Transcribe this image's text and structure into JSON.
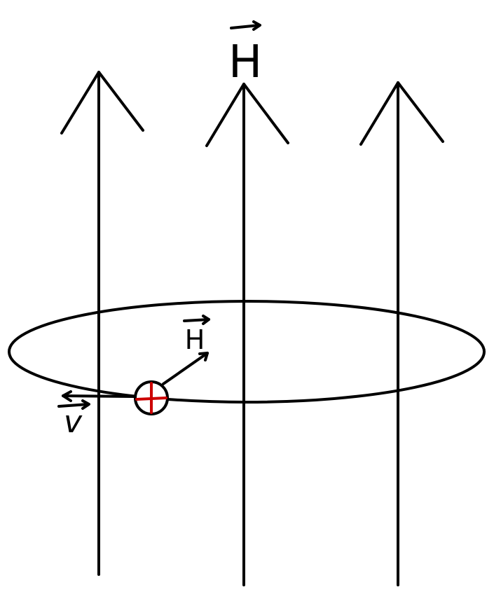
{
  "diagram": {
    "field_label": "H",
    "local_field_label": "H",
    "velocity_label": "v",
    "ink_color": "#000000",
    "charge_cross_color": "#cc0000",
    "background_color": "#ffffff"
  }
}
